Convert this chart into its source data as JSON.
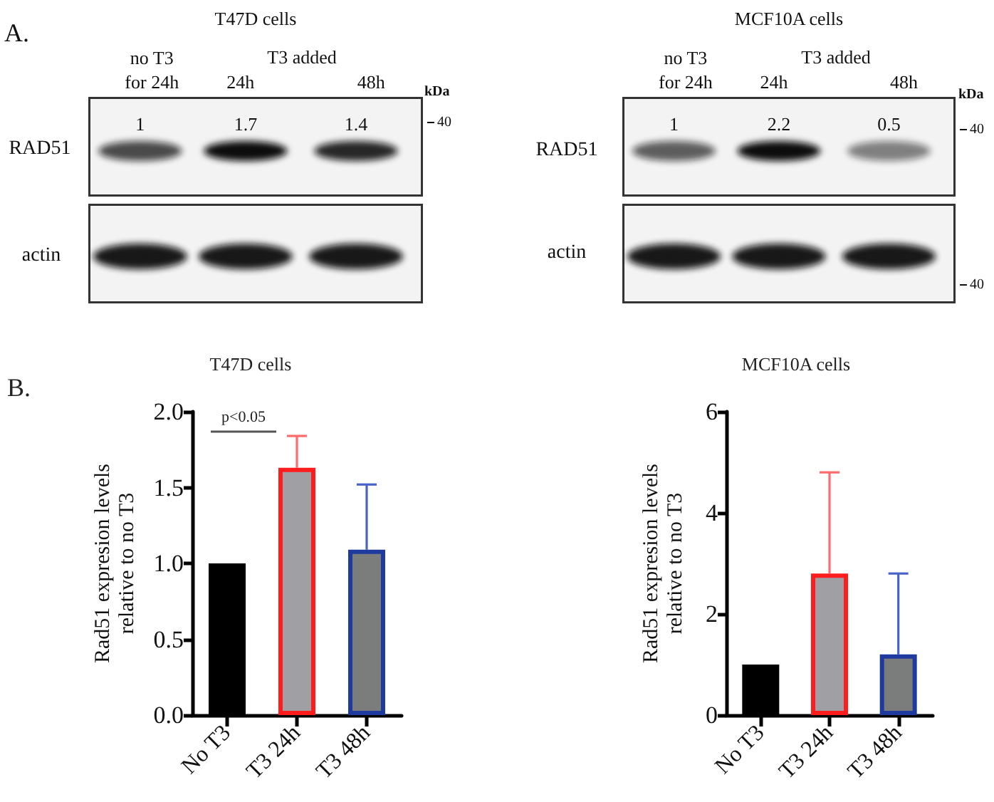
{
  "chart_data": [
    {
      "type": "other",
      "title": "T47D cells",
      "categories": [
        "no T3\nfor 24h",
        "24h",
        "48h"
      ],
      "values": [
        1,
        1.7,
        1.4
      ],
      "data_labels": true,
      "annotations": [
        "A.",
        "T3 added",
        "RAD51",
        "actin",
        "kDa",
        "40"
      ]
    },
    {
      "type": "other",
      "title": "MCF10A cells",
      "categories": [
        "no T3\nfor 24h",
        "24h",
        "48h"
      ],
      "values": [
        1,
        2.2,
        0.5
      ],
      "data_labels": true,
      "annotations": [
        "T3 added",
        "RAD51",
        "actin",
        "kDa",
        "40",
        "40"
      ]
    },
    {
      "type": "bar",
      "title": "T47D cells",
      "ylabel": "Rad51 expresion levels\nrelative to no T3",
      "categories": [
        "No T3",
        "T3 24h",
        "T3 48h"
      ],
      "values": [
        1.0,
        1.63,
        1.09
      ],
      "errors": [
        null,
        [
          1.63,
          1.84
        ],
        [
          1.09,
          1.52
        ]
      ],
      "colors": [
        "#000000",
        "#a0a0a4",
        "#7b7d7d"
      ],
      "ylim": [
        0,
        2
      ],
      "yticks": [
        {
          "value": 0,
          "label": "0.0"
        },
        0.5,
        {
          "value": 1,
          "label": "1.0"
        },
        1.5,
        {
          "value": 2,
          "label": "2.0"
        }
      ],
      "annotations": [
        "B.",
        "p<0.05"
      ]
    },
    {
      "type": "bar",
      "title": "MCF10A cells",
      "ylabel": "Rad51 expresion levels\nrelative to no T3",
      "categories": [
        "No T3",
        "T3 24h",
        "T3 48h"
      ],
      "values": [
        1.0,
        2.8,
        1.2
      ],
      "errors": [
        null,
        [
          2.8,
          4.8
        ],
        [
          1.2,
          2.8
        ]
      ],
      "colors": [
        "#000000",
        "#a0a0a4",
        "#7b7d7d"
      ],
      "ylim": [
        0,
        6
      ],
      "yticks": [
        0,
        2,
        4,
        6
      ]
    }
  ]
}
